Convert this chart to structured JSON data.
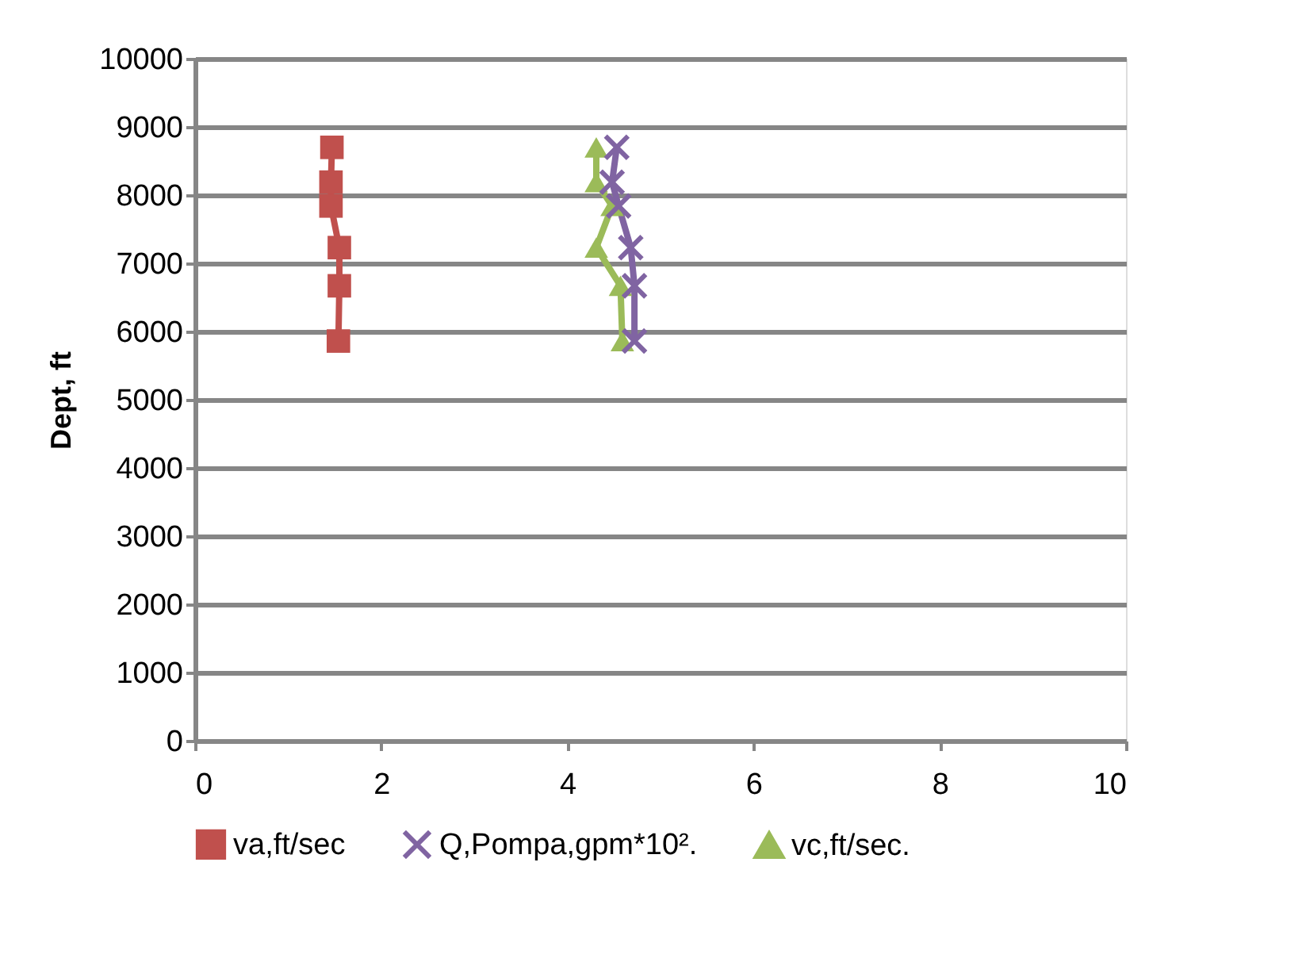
{
  "chart_data": {
    "type": "line",
    "ylabel": "Dept, ft",
    "xlim": [
      0,
      10
    ],
    "xticks": [
      0,
      2,
      4,
      6,
      8,
      10
    ],
    "ylim": [
      0,
      10000
    ],
    "yticks": [
      0,
      1000,
      2000,
      3000,
      4000,
      5000,
      6000,
      7000,
      8000,
      9000,
      10000
    ],
    "grid": "y",
    "legend": "bottom",
    "line_style": "solid",
    "series": [
      {
        "name": "va,ft/sec",
        "color": "#c0504d",
        "marker": "square",
        "x": [
          1.47,
          1.46,
          1.46,
          1.55,
          1.55,
          1.54
        ],
        "values": [
          8700,
          8190,
          7840,
          7230,
          6670,
          5860
        ]
      },
      {
        "name": "Q,Pompa,gpm*10².",
        "color": "#8064a2",
        "marker": "cross",
        "x": [
          4.53,
          4.48,
          4.55,
          4.68,
          4.72,
          4.72
        ],
        "values": [
          8700,
          8190,
          7840,
          7230,
          6670,
          5860
        ]
      },
      {
        "name": "vc,ft/sec.",
        "color": "#9bbb59",
        "marker": "triangle",
        "x": [
          4.31,
          4.31,
          4.48,
          4.31,
          4.57,
          4.59
        ],
        "values": [
          8700,
          8190,
          7840,
          7230,
          6670,
          5860
        ]
      }
    ]
  }
}
